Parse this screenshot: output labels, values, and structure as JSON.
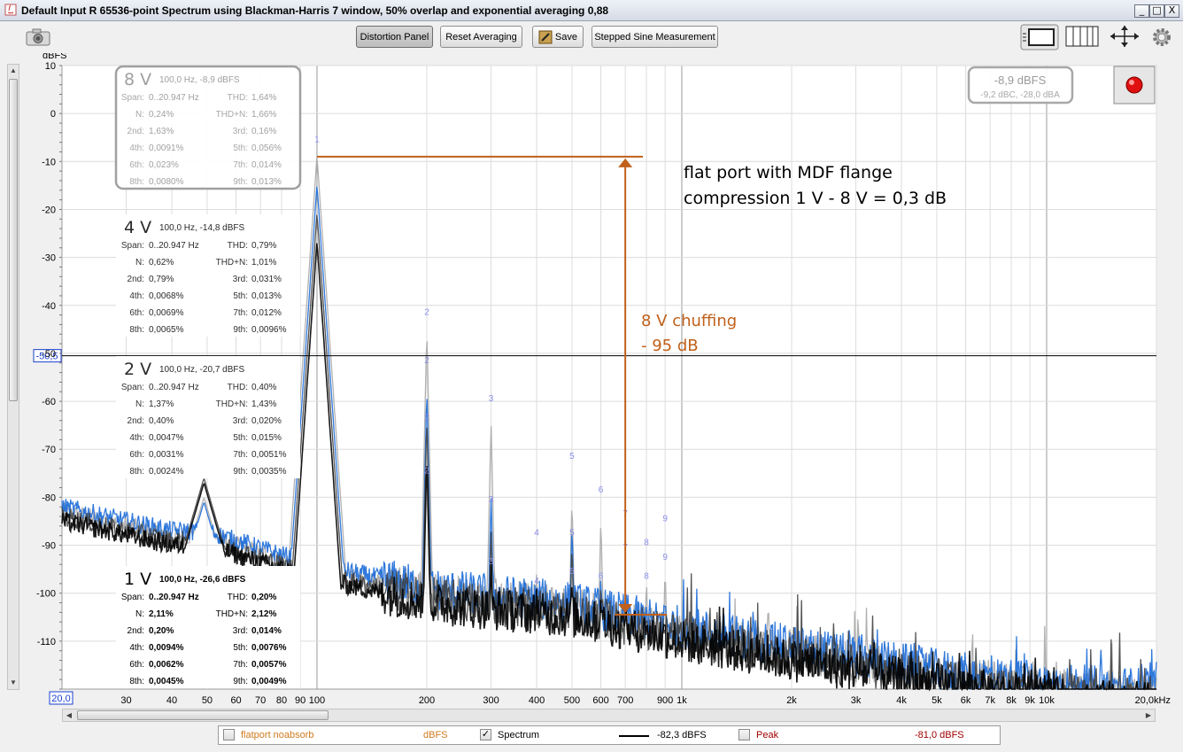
{
  "window": {
    "title": "Default Input R 65536-point Spectrum using Blackman-Harris 7 window, 50% overlap and exponential averaging 0,88",
    "minimize": "_",
    "maximize": "□",
    "close": "X"
  },
  "toolbar": {
    "camera_icon": "camera-icon",
    "distortion_panel": "Distortion Panel",
    "reset_averaging": "Reset Averaging",
    "save": "Save",
    "stepped_sine": "Stepped Sine Measurement",
    "icons": [
      "screen-layout-icon",
      "columns-icon",
      "expand-arrows-icon",
      "gear-icon"
    ]
  },
  "readout": {
    "level": "-8,9 dBFS",
    "weighted": "-9,2 dBC, -28,0 dBA"
  },
  "record_button": {
    "color": "#e01010"
  },
  "cursor": {
    "y_label": "-50,5",
    "x_label": "20,0",
    "y_value": -50.5
  },
  "annotations": {
    "line1": "flat port with MDF flange",
    "line2": "compression 1 V - 8 V = 0,3 dB",
    "chuff1": "8 V chuffing",
    "chuff2": "- 95 dB",
    "color": "#c0601a"
  },
  "panels": [
    {
      "voltage": "8 V",
      "head": "100,0 Hz, -8,9 dBFS",
      "style": "boxed",
      "rows": [
        [
          "Span:",
          "0..20.947 Hz",
          "THD:",
          "1,64%"
        ],
        [
          "N:",
          "0,24%",
          "THD+N:",
          "1,66%"
        ],
        [
          "2nd:",
          "1,63%",
          "3rd:",
          "0,16%"
        ],
        [
          "4th:",
          "0,0091%",
          "5th:",
          "0,056%"
        ],
        [
          "6th:",
          "0,023%",
          "7th:",
          "0,014%"
        ],
        [
          "8th:",
          "0,0080%",
          "9th:",
          "0,013%"
        ]
      ]
    },
    {
      "voltage": "4 V",
      "head": "100,0 Hz, -14,8 dBFS",
      "style": "mid",
      "rows": [
        [
          "Span:",
          "0..20.947 Hz",
          "THD:",
          "0,79%"
        ],
        [
          "N:",
          "0,62%",
          "THD+N:",
          "1,01%"
        ],
        [
          "2nd:",
          "0,79%",
          "3rd:",
          "0,031%"
        ],
        [
          "4th:",
          "0,0068%",
          "5th:",
          "0,013%"
        ],
        [
          "6th:",
          "0,0069%",
          "7th:",
          "0,012%"
        ],
        [
          "8th:",
          "0,0065%",
          "9th:",
          "0,0096%"
        ]
      ]
    },
    {
      "voltage": "2 V",
      "head": "100,0 Hz, -20,7 dBFS",
      "style": "mid",
      "rows": [
        [
          "Span:",
          "0..20.947 Hz",
          "THD:",
          "0,40%"
        ],
        [
          "N:",
          "1,37%",
          "THD+N:",
          "1,43%"
        ],
        [
          "2nd:",
          "0,40%",
          "3rd:",
          "0,020%"
        ],
        [
          "4th:",
          "0,0047%",
          "5th:",
          "0,015%"
        ],
        [
          "6th:",
          "0,0031%",
          "7th:",
          "0,0051%"
        ],
        [
          "8th:",
          "0,0024%",
          "9th:",
          "0,0035%"
        ]
      ]
    },
    {
      "voltage": "1 V",
      "head": "100,0 Hz, -26,6 dBFS",
      "style": "dark",
      "rows": [
        [
          "Span:",
          "0..20.947 Hz",
          "THD:",
          "0,20%"
        ],
        [
          "N:",
          "2,11%",
          "THD+N:",
          "2,12%"
        ],
        [
          "2nd:",
          "0,20%",
          "3rd:",
          "0,014%"
        ],
        [
          "4th:",
          "0,0094%",
          "5th:",
          "0,0076%"
        ],
        [
          "6th:",
          "0,0062%",
          "7th:",
          "0,0057%"
        ],
        [
          "8th:",
          "0,0045%",
          "9th:",
          "0,0049%"
        ]
      ]
    }
  ],
  "legend": {
    "item1": "flatport noabsorb",
    "item1_unit": "dBFS",
    "item1_color": "#d07a1e",
    "item2": "Spectrum",
    "item2_value": "-82,3 dBFS",
    "item3": "Peak",
    "item3_value": "-81,0 dBFS",
    "item3_color": "#a00000"
  },
  "chart_data": {
    "type": "line",
    "ylabel": "dBFS",
    "xlabel": "",
    "ylim": [
      -120,
      10
    ],
    "xlim": [
      20,
      20000
    ],
    "x_scale": "log",
    "grid": true,
    "y_ticks": [
      10,
      0,
      -10,
      -20,
      -30,
      -40,
      -50,
      -60,
      -70,
      -80,
      -90,
      -100,
      -110
    ],
    "x_ticks": [
      {
        "v": 30,
        "t": "30"
      },
      {
        "v": 40,
        "t": "40"
      },
      {
        "v": 50,
        "t": "50"
      },
      {
        "v": 60,
        "t": "60"
      },
      {
        "v": 70,
        "t": "70"
      },
      {
        "v": 80,
        "t": "80"
      },
      {
        "v": 90,
        "t": "90"
      },
      {
        "v": 100,
        "t": "100"
      },
      {
        "v": 200,
        "t": "200"
      },
      {
        "v": 300,
        "t": "300"
      },
      {
        "v": 400,
        "t": "400"
      },
      {
        "v": 500,
        "t": "500"
      },
      {
        "v": 600,
        "t": "600"
      },
      {
        "v": 700,
        "t": "700"
      },
      {
        "v": 900,
        "t": "900"
      },
      {
        "v": 1000,
        "t": "1k"
      },
      {
        "v": 2000,
        "t": "2k"
      },
      {
        "v": 3000,
        "t": "3k"
      },
      {
        "v": 4000,
        "t": "4k"
      },
      {
        "v": 5000,
        "t": "5k"
      },
      {
        "v": 6000,
        "t": "6k"
      },
      {
        "v": 7000,
        "t": "7k"
      },
      {
        "v": 8000,
        "t": "8k"
      },
      {
        "v": 9000,
        "t": "9k"
      },
      {
        "v": 10000,
        "t": "10k"
      },
      {
        "v": 20000,
        "t": "20,0kHz"
      }
    ],
    "grid_x": [
      30,
      40,
      50,
      60,
      70,
      80,
      90,
      100,
      200,
      300,
      400,
      500,
      600,
      700,
      800,
      900,
      1000,
      2000,
      3000,
      4000,
      5000,
      6000,
      7000,
      8000,
      9000,
      10000,
      20000
    ],
    "harmonic_labels": [
      {
        "n": "1",
        "f": 100,
        "y": -6
      },
      {
        "n": "2",
        "f": 200,
        "y": -42
      },
      {
        "n": "2",
        "f": 200,
        "y": -52
      },
      {
        "n": "2",
        "f": 200,
        "y": -64
      },
      {
        "n": "2",
        "f": 200,
        "y": -75
      },
      {
        "n": "3",
        "f": 300,
        "y": -60
      },
      {
        "n": "3",
        "f": 300,
        "y": -81
      },
      {
        "n": "3",
        "f": 300,
        "y": -94
      },
      {
        "n": "4",
        "f": 400,
        "y": -88
      },
      {
        "n": "4",
        "f": 400,
        "y": -98
      },
      {
        "n": "5",
        "f": 500,
        "y": -72
      },
      {
        "n": "5",
        "f": 500,
        "y": -88
      },
      {
        "n": "5",
        "f": 500,
        "y": -96
      },
      {
        "n": "6",
        "f": 600,
        "y": -79
      },
      {
        "n": "6",
        "f": 600,
        "y": -97
      },
      {
        "n": "7",
        "f": 700,
        "y": -84
      },
      {
        "n": "7",
        "f": 700,
        "y": -91
      },
      {
        "n": "8",
        "f": 800,
        "y": -90
      },
      {
        "n": "8",
        "f": 800,
        "y": -97
      },
      {
        "n": "9",
        "f": 900,
        "y": -85
      },
      {
        "n": "9",
        "f": 900,
        "y": -93
      }
    ],
    "series": [
      {
        "name": "8 V",
        "color": "#a8a8a8",
        "fundamental_db": -8.9,
        "harmonics": [
          [
            200,
            -45
          ],
          [
            300,
            -64
          ],
          [
            400,
            -95
          ],
          [
            500,
            -80
          ],
          [
            600,
            -84
          ],
          [
            700,
            -98
          ],
          [
            800,
            -96
          ],
          [
            900,
            -94
          ]
        ],
        "low_hump_db": -80,
        "floor_offset": 0
      },
      {
        "name": "4 V",
        "color": "#1a6ad8",
        "fundamental_db": -14.8,
        "harmonics": [
          [
            200,
            -57
          ],
          [
            300,
            -79
          ],
          [
            400,
            -98
          ],
          [
            500,
            -85
          ],
          [
            600,
            -95
          ],
          [
            700,
            -100
          ],
          [
            800,
            -101
          ],
          [
            900,
            -99
          ]
        ],
        "low_hump_db": -81,
        "floor_offset": 1
      },
      {
        "name": "2 V",
        "color": "#404040",
        "fundamental_db": -20.7,
        "harmonics": [
          [
            200,
            -63
          ],
          [
            300,
            -86
          ],
          [
            400,
            -101
          ],
          [
            500,
            -89
          ],
          [
            600,
            -97
          ],
          [
            700,
            -99
          ],
          [
            800,
            -103
          ],
          [
            900,
            -104
          ]
        ],
        "low_hump_db": -76,
        "floor_offset": -1
      },
      {
        "name": "1 V",
        "color": "#000000",
        "fundamental_db": -26.6,
        "harmonics": [
          [
            200,
            -71
          ],
          [
            300,
            -92
          ],
          [
            400,
            -98
          ],
          [
            500,
            -96
          ],
          [
            600,
            -99
          ],
          [
            700,
            -102
          ],
          [
            800,
            -104
          ],
          [
            900,
            -103
          ]
        ],
        "low_hump_db": -77,
        "floor_offset": -2
      }
    ],
    "floor_points": [
      [
        20,
        -83
      ],
      [
        40,
        -88
      ],
      [
        50,
        -88
      ],
      [
        60,
        -90
      ],
      [
        80,
        -93
      ],
      [
        100,
        -95
      ],
      [
        200,
        -100
      ],
      [
        500,
        -103
      ],
      [
        1000,
        -108
      ],
      [
        2000,
        -112
      ],
      [
        5000,
        -117
      ],
      [
        10000,
        -120
      ],
      [
        20000,
        -121
      ]
    ],
    "chuffing_marker": {
      "x": 700,
      "y_top": -9,
      "y_bottom": -104.5
    }
  }
}
